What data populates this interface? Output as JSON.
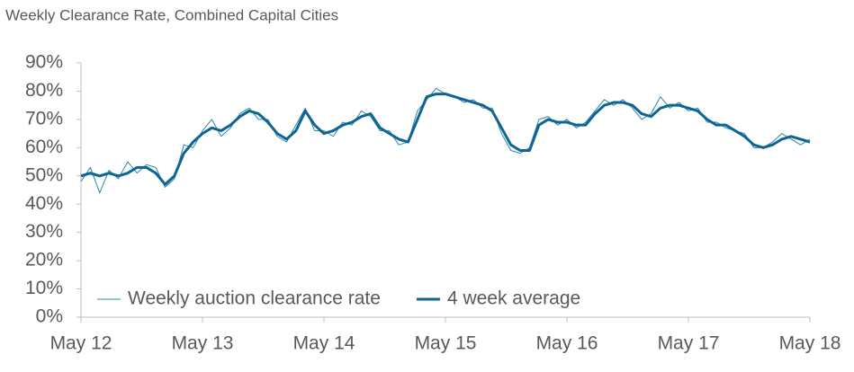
{
  "chart_data": {
    "type": "line",
    "title": "Weekly Clearance Rate, Combined Capital Cities",
    "x": [
      0,
      4,
      8,
      12,
      16,
      20,
      24,
      28,
      32,
      36,
      40,
      44,
      48,
      52,
      56,
      60,
      64,
      68,
      72,
      76,
      80,
      84,
      88,
      92,
      96,
      100,
      104,
      108,
      112,
      116,
      120,
      124,
      128,
      132,
      136,
      140,
      144,
      148,
      152,
      156,
      160,
      164,
      168,
      172,
      176,
      180,
      184,
      188,
      192,
      196,
      200,
      204,
      208,
      212,
      216,
      220,
      224,
      228,
      232,
      236,
      240,
      244,
      248,
      252,
      256,
      260,
      264,
      268,
      272,
      276,
      280,
      284,
      288,
      292,
      296,
      300,
      304,
      308,
      312
    ],
    "series": [
      {
        "name": "Weekly auction clearance rate",
        "color": "#2a87b3",
        "width": 1,
        "values": [
          48,
          53,
          44,
          52,
          49,
          55,
          51,
          54,
          53,
          46,
          49,
          61,
          60,
          66,
          70,
          64,
          67,
          72,
          74,
          70,
          70,
          64,
          62,
          68,
          74,
          66,
          66,
          64,
          69,
          68,
          73,
          71,
          66,
          66,
          61,
          62,
          73,
          77,
          81,
          79,
          78,
          76,
          77,
          74,
          74,
          65,
          59,
          58,
          60,
          70,
          71,
          68,
          70,
          67,
          69,
          73,
          77,
          75,
          77,
          74,
          70,
          72,
          78,
          74,
          76,
          73,
          74,
          69,
          69,
          67,
          66,
          65,
          60,
          60,
          62,
          65,
          63,
          61,
          63
        ]
      },
      {
        "name": "4 week average",
        "color": "#0f6590",
        "width": 3,
        "values": [
          50,
          51,
          50,
          51,
          50,
          51,
          53,
          53,
          51,
          47,
          50,
          58,
          62,
          65,
          67,
          66,
          68,
          71,
          73,
          72,
          69,
          65,
          63,
          66,
          73,
          68,
          65,
          66,
          68,
          69,
          71,
          72,
          67,
          65,
          63,
          62,
          70,
          78,
          79,
          79,
          78,
          77,
          76,
          75,
          73,
          67,
          61,
          59,
          59,
          68,
          70,
          69,
          69,
          68,
          68,
          72,
          75,
          76,
          76,
          75,
          72,
          71,
          74,
          75,
          75,
          74,
          73,
          70,
          68,
          68,
          66,
          64,
          61,
          60,
          61,
          63,
          64,
          63,
          62
        ]
      }
    ],
    "xlim": [
      0,
      312
    ],
    "xticks": [
      {
        "value": 0,
        "label": "May 12"
      },
      {
        "value": 52,
        "label": "May 13"
      },
      {
        "value": 104,
        "label": "May 14"
      },
      {
        "value": 156,
        "label": "May 15"
      },
      {
        "value": 208,
        "label": "May 16"
      },
      {
        "value": 260,
        "label": "May 17"
      },
      {
        "value": 312,
        "label": "May 18"
      }
    ],
    "ylim": [
      0,
      90
    ],
    "yticks": [
      {
        "value": 0,
        "label": "0%"
      },
      {
        "value": 10,
        "label": "10%"
      },
      {
        "value": 20,
        "label": "20%"
      },
      {
        "value": 30,
        "label": "30%"
      },
      {
        "value": 40,
        "label": "40%"
      },
      {
        "value": 50,
        "label": "50%"
      },
      {
        "value": 60,
        "label": "60%"
      },
      {
        "value": 70,
        "label": "70%"
      },
      {
        "value": 80,
        "label": "80%"
      },
      {
        "value": 90,
        "label": "90%"
      }
    ],
    "grid": false,
    "legend": "lower left"
  }
}
